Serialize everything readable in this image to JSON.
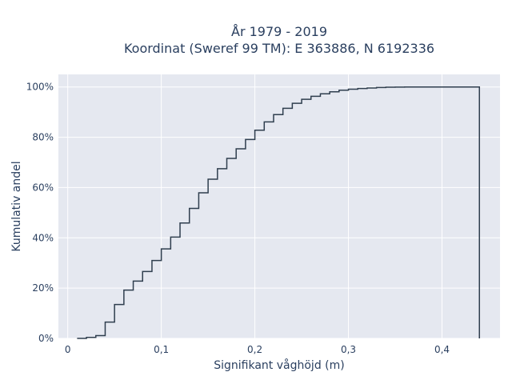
{
  "chart_data": {
    "type": "line",
    "subtype": "step-cdf",
    "title": "År 1979 - 2019",
    "subtitle": "Koordinat (Sweref 99 TM): E 363886, N 6192336",
    "xlabel": "Signifikant våghöjd (m)",
    "ylabel": "Kumulativ andel",
    "xlim": [
      -0.01,
      0.462
    ],
    "ylim": [
      0,
      1.05
    ],
    "x_ticks": [
      0,
      0.1,
      0.2,
      0.3,
      0.4
    ],
    "x_tick_labels": [
      "0",
      "0,1",
      "0,2",
      "0,3",
      "0,4"
    ],
    "y_ticks": [
      0,
      0.2,
      0.4,
      0.6,
      0.8,
      1.0
    ],
    "y_tick_labels": [
      "0%",
      "20%",
      "40%",
      "60%",
      "80%",
      "100%"
    ],
    "grid": true,
    "line_color": "#2f3e4e",
    "plot_background": "#e5e8f0",
    "grid_color": "#ffffff",
    "text_color": "#2a3f5f",
    "series": [
      {
        "x": [
          0.01,
          0.02,
          0.03,
          0.04,
          0.05,
          0.06,
          0.07,
          0.08,
          0.09,
          0.1,
          0.11,
          0.12,
          0.13,
          0.14,
          0.15,
          0.16,
          0.17,
          0.18,
          0.19,
          0.2,
          0.21,
          0.22,
          0.23,
          0.24,
          0.25,
          0.26,
          0.27,
          0.28,
          0.29,
          0.3,
          0.31,
          0.32,
          0.33,
          0.34,
          0.35,
          0.36,
          0.44
        ],
        "y": [
          0.0,
          0.004,
          0.011,
          0.065,
          0.135,
          0.192,
          0.228,
          0.266,
          0.31,
          0.356,
          0.403,
          0.459,
          0.517,
          0.579,
          0.633,
          0.675,
          0.716,
          0.754,
          0.791,
          0.828,
          0.861,
          0.89,
          0.915,
          0.935,
          0.951,
          0.963,
          0.973,
          0.981,
          0.987,
          0.991,
          0.994,
          0.996,
          0.998,
          0.999,
          0.9995,
          1.0,
          0.0
        ]
      }
    ]
  }
}
